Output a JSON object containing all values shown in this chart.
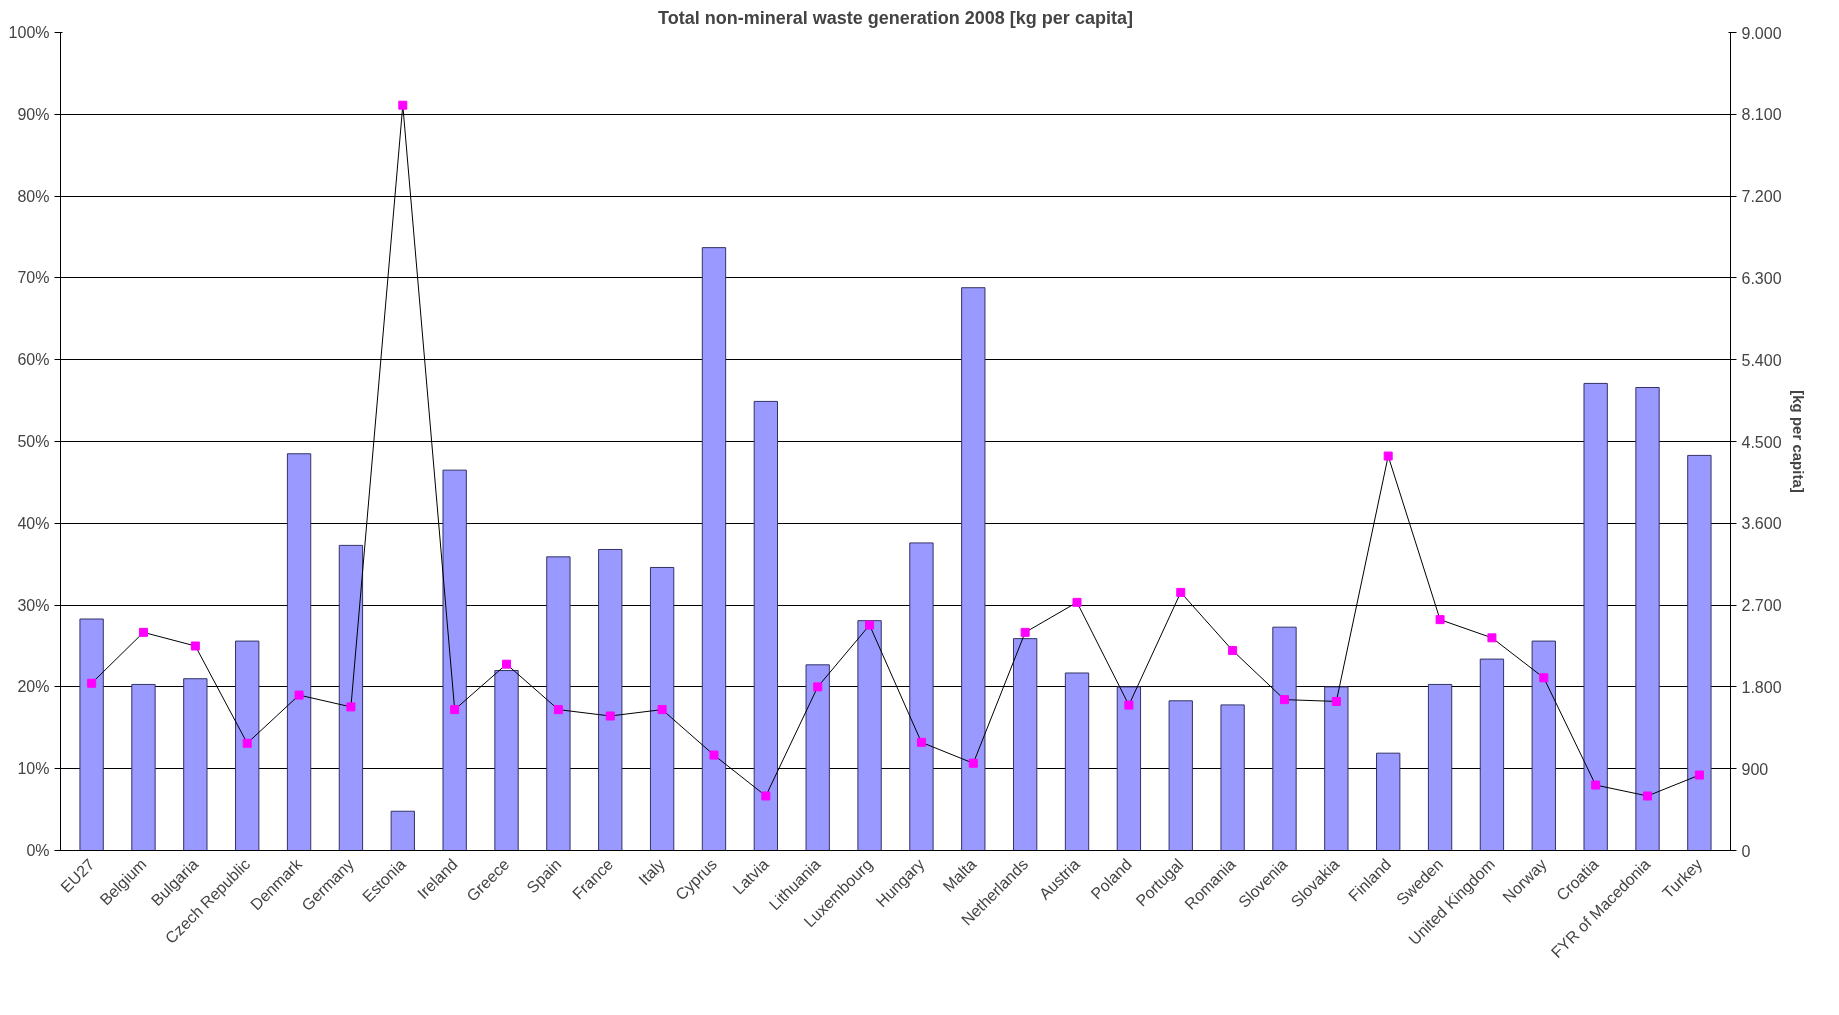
{
  "chart_data": {
    "type": "bar",
    "title": "Total non-mineral waste generation 2008 [kg per capita]",
    "y2label": "[kg per capita]",
    "categories": [
      "EU27",
      "Belgium",
      "Bulgaria",
      "Czech Republic",
      "Denmark",
      "Germany",
      "Estonia",
      "Ireland",
      "Greece",
      "Spain",
      "France",
      "Italy",
      "Cyprus",
      "Latvia",
      "Lithuania",
      "Luxembourg",
      "Hungary",
      "Malta",
      "Netherlands",
      "Austria",
      "Poland",
      "Portugal",
      "Romania",
      "Slovenia",
      "Slovakia",
      "Finland",
      "Sweden",
      "United Kingdom",
      "Norway",
      "Croatia",
      "FYR of Macedonia",
      "Turkey"
    ],
    "series": [
      {
        "color": "#9999ff",
        "values": [
          28.3,
          20.3,
          21,
          25.6,
          48.5,
          37.3,
          4.8,
          46.5,
          22,
          35.9,
          36.8,
          34.6,
          73.7,
          54.9,
          22.7,
          28.1,
          37.6,
          68.8,
          25.9,
          21.7,
          20,
          18.3,
          17.8,
          27.3,
          20,
          11.9,
          20.3,
          23.4,
          25.6,
          57.1,
          56.6,
          48.3
        ]
      },
      {
        "type": "line",
        "axis": "y2",
        "color": "#ff00ff",
        "marker": "square",
        "values": [
          1840,
          2400,
          2250,
          1180,
          1710,
          1580,
          8200,
          1550,
          2050,
          1550,
          1480,
          1550,
          1050,
          600,
          1800,
          2480,
          1190,
          960,
          2400,
          2730,
          1600,
          2840,
          2200,
          1660,
          1640,
          4340,
          2540,
          2340,
          1900,
          720,
          600,
          830
        ]
      }
    ],
    "ylim": [
      0,
      100
    ],
    "yticks": [
      {
        "value": 0,
        "label": "0%"
      },
      {
        "value": 10,
        "label": "10%"
      },
      {
        "value": 20,
        "label": "20%"
      },
      {
        "value": 30,
        "label": "30%"
      },
      {
        "value": 40,
        "label": "40%"
      },
      {
        "value": 50,
        "label": "50%"
      },
      {
        "value": 60,
        "label": "60%"
      },
      {
        "value": 70,
        "label": "70%"
      },
      {
        "value": 80,
        "label": "80%"
      },
      {
        "value": 90,
        "label": "90%"
      },
      {
        "value": 100,
        "label": "100%"
      }
    ],
    "y2lim": [
      0,
      9000
    ],
    "y2ticks": [
      0,
      900,
      {
        "value": 1800,
        "label": "1.800"
      },
      {
        "value": 2700,
        "label": "2.700"
      },
      {
        "value": 3600,
        "label": "3.600"
      },
      {
        "value": 4500,
        "label": "4.500"
      },
      {
        "value": 5400,
        "label": "5.400"
      },
      {
        "value": 6300,
        "label": "6.300"
      },
      {
        "value": 7200,
        "label": "7.200"
      },
      {
        "value": 8100,
        "label": "8.100"
      },
      {
        "value": 9000,
        "label": "9.000"
      }
    ],
    "grid": "y"
  }
}
